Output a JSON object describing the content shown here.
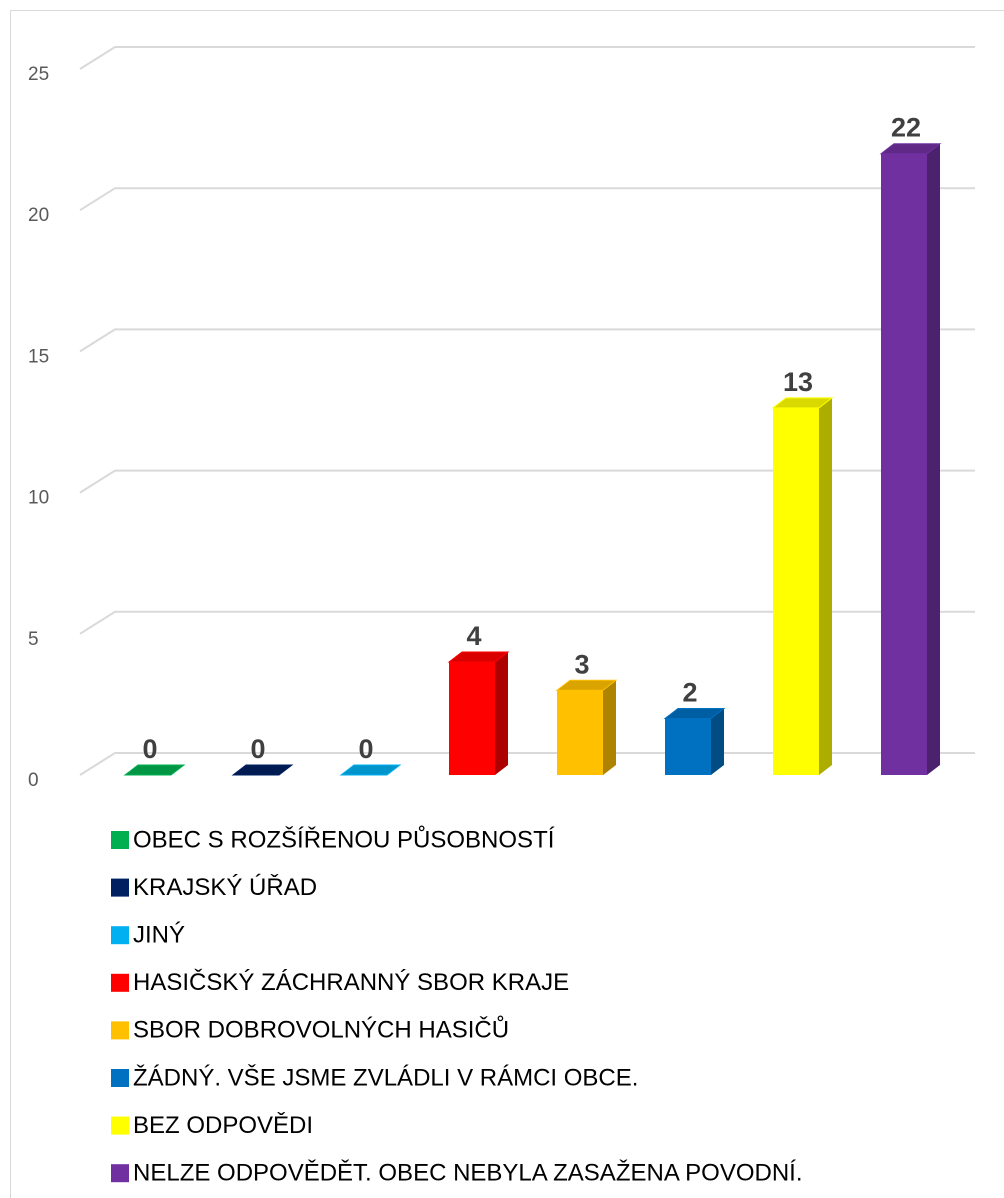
{
  "chart_data": {
    "type": "bar",
    "ylim": [
      0,
      25
    ],
    "yticks": [
      0,
      5,
      10,
      15,
      20,
      25
    ],
    "grid": true,
    "series": [
      {
        "name": "OBEC S ROZŠÍŘENOU PŮSOBNOSTÍ",
        "color": "#00b050",
        "values": [
          0
        ]
      },
      {
        "name": "KRAJSKÝ ÚŘAD",
        "color": "#002060",
        "values": [
          0
        ]
      },
      {
        "name": "JINÝ",
        "color": "#00b0f0",
        "values": [
          0
        ]
      },
      {
        "name": "HASIČSKÝ ZÁCHRANNÝ SBOR KRAJE",
        "color": "#ff0000",
        "values": [
          4
        ]
      },
      {
        "name": "SBOR DOBROVOLNÝCH HASIČŮ",
        "color": "#ffc000",
        "values": [
          3
        ]
      },
      {
        "name": "ŽÁDNÝ. VŠE JSME ZVLÁDLI V RÁMCI OBCE.",
        "color": "#0070c0",
        "values": [
          2
        ]
      },
      {
        "name": "BEZ ODPOVĚDI",
        "color": "#ffff00",
        "values": [
          13
        ]
      },
      {
        "name": "NELZE ODPOVĚDĚT. OBEC NEBYLA ZASAŽENA POVODNÍ.",
        "color": "#7030a0",
        "values": [
          22
        ]
      }
    ]
  }
}
